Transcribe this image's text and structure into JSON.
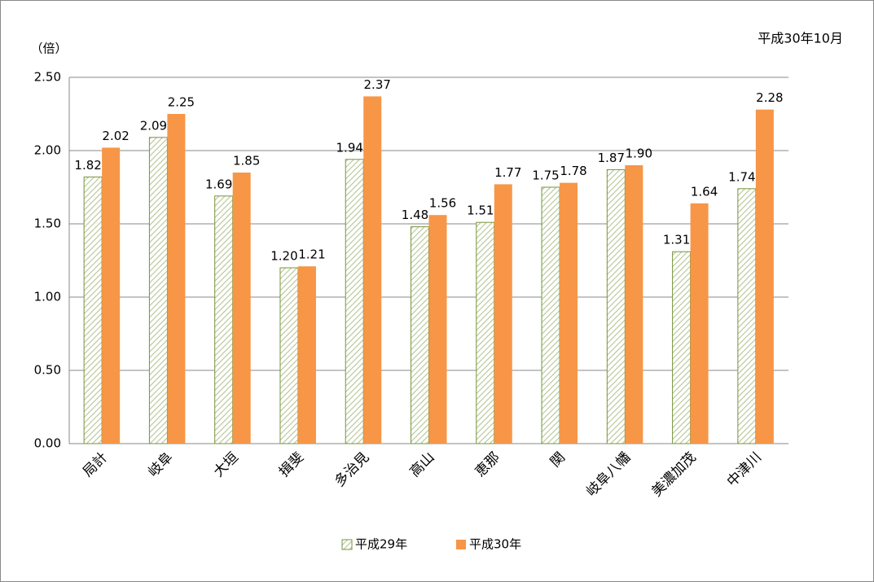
{
  "chart_data": {
    "type": "bar",
    "y_label": "（倍）",
    "subtitle": "平成30年10月",
    "categories": [
      "局計",
      "岐阜",
      "大垣",
      "揖斐",
      "多治見",
      "高山",
      "恵那",
      "関",
      "岐阜八幡",
      "美濃加茂",
      "中津川"
    ],
    "series": [
      {
        "name": "平成29年",
        "color": "#77933c",
        "pattern": "hatch",
        "values": [
          1.82,
          2.09,
          1.69,
          1.2,
          1.94,
          1.48,
          1.51,
          1.75,
          1.87,
          1.31,
          1.74
        ],
        "value_labels": [
          "1.82",
          "2.09",
          "1.69",
          "1.20",
          "1.94",
          "1.48",
          "1.51",
          "1.75",
          "1.87",
          "1.31",
          "1.74"
        ]
      },
      {
        "name": "平成30年",
        "color": "#f79646",
        "values": [
          2.02,
          2.25,
          1.85,
          1.21,
          2.37,
          1.56,
          1.77,
          1.78,
          1.9,
          1.64,
          2.28
        ],
        "value_labels": [
          "2.02",
          "2.25",
          "1.85",
          "1.21",
          "2.37",
          "1.56",
          "1.77",
          "1.78",
          "1.90",
          "1.64",
          "2.28"
        ]
      }
    ],
    "ylim": [
      0,
      2.5
    ],
    "yticks": [
      {
        "value": 0,
        "label": "0.00"
      },
      {
        "value": 0.5,
        "label": "0.50"
      },
      {
        "value": 1,
        "label": "1.00"
      },
      {
        "value": 1.5,
        "label": "1.50"
      },
      {
        "value": 2,
        "label": "2.00"
      },
      {
        "value": 2.5,
        "label": "2.50"
      }
    ],
    "grid": true,
    "legend": "bottom"
  }
}
